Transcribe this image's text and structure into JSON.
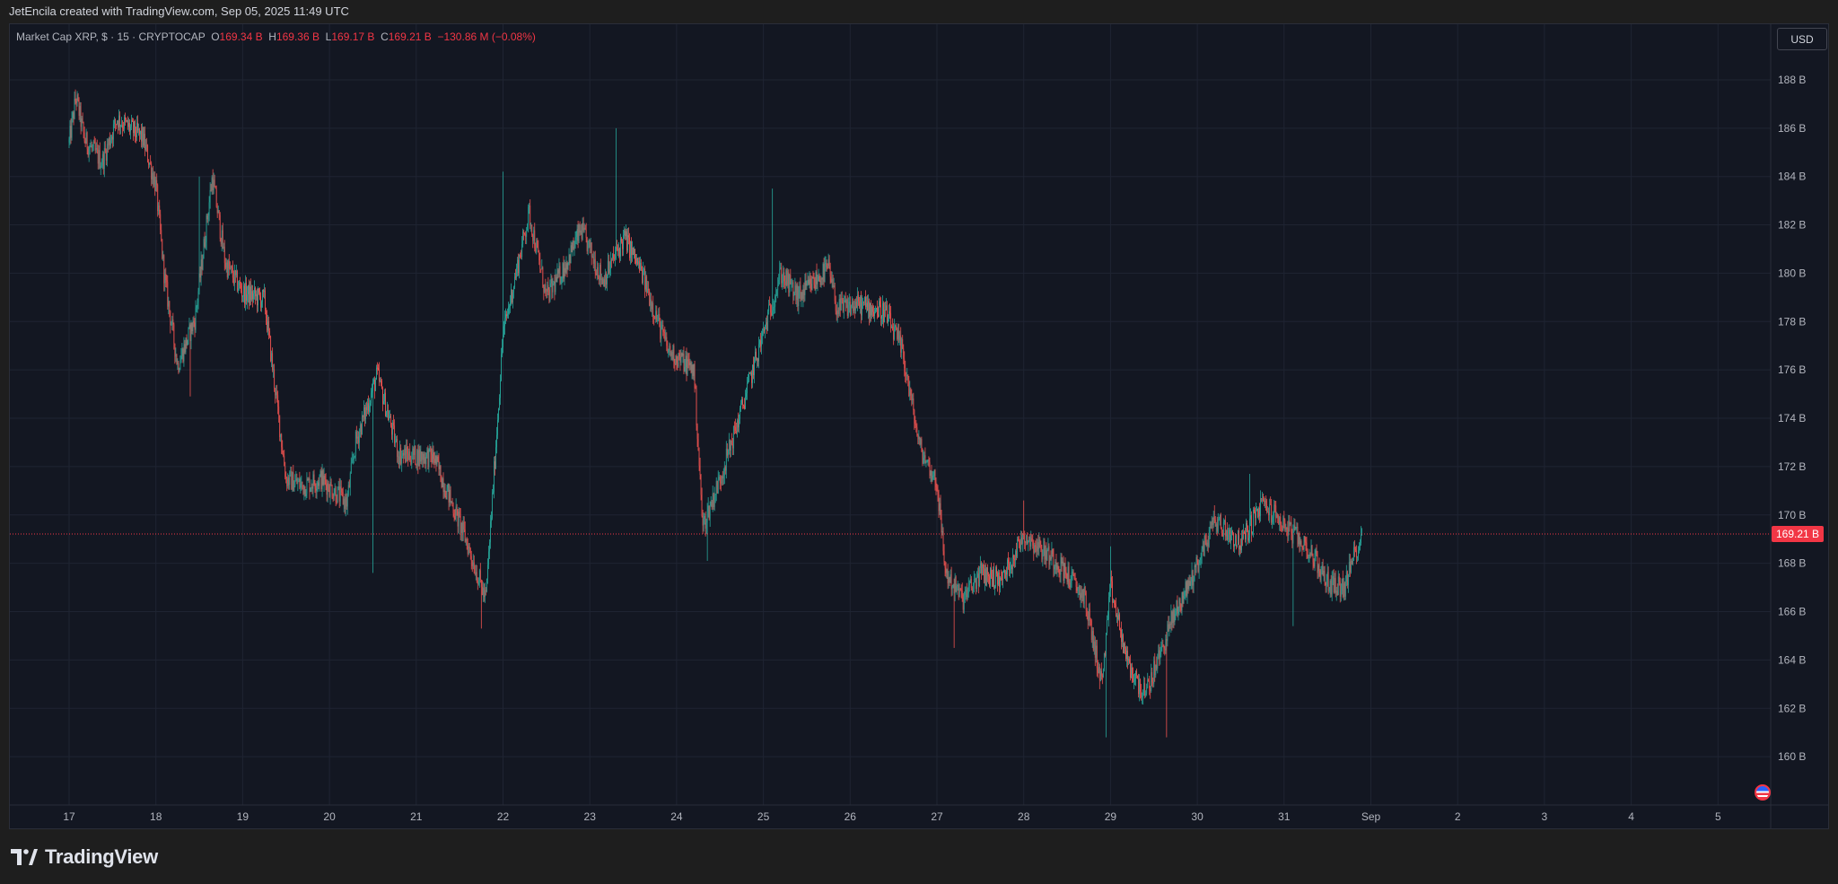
{
  "header": {
    "credit": "JetEncila created with TradingView.com, Sep 05, 2025 11:49 UTC"
  },
  "legend": {
    "title": "Market Cap XRP, $ · 15 · CRYPTOCAP",
    "o_label": "O",
    "o_value": "169.34 B",
    "h_label": "H",
    "h_value": "169.36 B",
    "l_label": "L",
    "l_value": "169.17 B",
    "c_label": "C",
    "c_value": "169.21 B",
    "change": "−130.86 M (−0.08%)"
  },
  "toolbar": {
    "currency_label": "USD"
  },
  "footer": {
    "brand": "TradingView"
  },
  "colors": {
    "background": "#131722",
    "grid": "#1f2432",
    "up": "#26a69a",
    "down": "#ef5350",
    "price_line": "#f23645",
    "axis_text": "#b2b5be"
  },
  "icons": {
    "logo": "tradingview-logo-icon",
    "flag": "us-flag-icon"
  },
  "chart_data": {
    "type": "candlestick",
    "title": "Market Cap XRP, $ · 15 · CRYPTOCAP",
    "y_unit": "B",
    "ylim": [
      158.0,
      190.3
    ],
    "y_ticks": [
      160,
      162,
      164,
      166,
      168,
      170,
      172,
      174,
      176,
      178,
      180,
      182,
      184,
      186,
      188
    ],
    "y_tick_labels": [
      "160 B",
      "162 B",
      "164 B",
      "166 B",
      "168 B",
      "170 B",
      "172 B",
      "174 B",
      "176 B",
      "178 B",
      "180 B",
      "182 B",
      "184 B",
      "186 B",
      "188 B"
    ],
    "x_ticks": [
      "17",
      "18",
      "19",
      "20",
      "21",
      "22",
      "23",
      "24",
      "25",
      "26",
      "27",
      "28",
      "29",
      "30",
      "31",
      "Sep",
      "2",
      "3",
      "4",
      "5"
    ],
    "last_price": 169.21,
    "last_price_label": "169.21 B",
    "grid": true,
    "series_path": [
      [
        0,
        185.4
      ],
      [
        0.08,
        187.3
      ],
      [
        0.18,
        185.5
      ],
      [
        0.38,
        184.6
      ],
      [
        0.55,
        186.4
      ],
      [
        0.85,
        185.6
      ],
      [
        1.0,
        183.6
      ],
      [
        1.1,
        179.8
      ],
      [
        1.25,
        176.2
      ],
      [
        1.45,
        178.1
      ],
      [
        1.65,
        184.0
      ],
      [
        1.8,
        180.4
      ],
      [
        2.0,
        179.2
      ],
      [
        2.25,
        178.9
      ],
      [
        2.5,
        171.5
      ],
      [
        2.7,
        171.2
      ],
      [
        2.9,
        171.5
      ],
      [
        3.2,
        170.5
      ],
      [
        3.3,
        173.0
      ],
      [
        3.55,
        175.8
      ],
      [
        3.8,
        172.5
      ],
      [
        4.2,
        172.4
      ],
      [
        4.55,
        169.2
      ],
      [
        4.8,
        166.5
      ],
      [
        5.0,
        177.5
      ],
      [
        5.3,
        182.5
      ],
      [
        5.5,
        179.0
      ],
      [
        5.7,
        180.2
      ],
      [
        5.9,
        181.8
      ],
      [
        6.15,
        179.7
      ],
      [
        6.4,
        181.5
      ],
      [
        6.6,
        180.0
      ],
      [
        6.9,
        176.8
      ],
      [
        7.2,
        176.0
      ],
      [
        7.3,
        169.5
      ],
      [
        7.5,
        171.5
      ],
      [
        7.7,
        173.8
      ],
      [
        8.0,
        177.5
      ],
      [
        8.2,
        180.0
      ],
      [
        8.4,
        179.0
      ],
      [
        8.75,
        180.2
      ],
      [
        8.85,
        178.5
      ],
      [
        9.1,
        178.7
      ],
      [
        9.4,
        178.4
      ],
      [
        9.6,
        176.8
      ],
      [
        9.8,
        172.8
      ],
      [
        10.0,
        171.3
      ],
      [
        10.1,
        167.6
      ],
      [
        10.3,
        166.5
      ],
      [
        10.5,
        167.6
      ],
      [
        10.75,
        167.3
      ],
      [
        11.0,
        169.2
      ],
      [
        11.4,
        168.0
      ],
      [
        11.7,
        166.6
      ],
      [
        11.9,
        163.0
      ],
      [
        12.0,
        167.0
      ],
      [
        12.2,
        163.8
      ],
      [
        12.4,
        162.5
      ],
      [
        12.7,
        165.6
      ],
      [
        12.95,
        167.5
      ],
      [
        13.2,
        169.8
      ],
      [
        13.5,
        168.8
      ],
      [
        13.75,
        170.5
      ],
      [
        14.0,
        169.6
      ],
      [
        14.3,
        168.5
      ],
      [
        14.5,
        167.2
      ],
      [
        14.7,
        167.0
      ],
      [
        14.8,
        168.3
      ],
      [
        14.9,
        169.21
      ]
    ],
    "highs": [
      [
        0.07,
        187.6
      ],
      [
        1.5,
        184.0
      ],
      [
        5.0,
        184.2
      ],
      [
        6.3,
        186.0
      ],
      [
        8.1,
        183.5
      ],
      [
        9.6,
        173.8
      ],
      [
        11.0,
        170.6
      ],
      [
        12.0,
        168.7
      ],
      [
        13.2,
        170.4
      ],
      [
        13.6,
        171.7
      ]
    ],
    "lows": [
      [
        1.4,
        174.9
      ],
      [
        3.5,
        167.6
      ],
      [
        4.75,
        165.3
      ],
      [
        7.35,
        168.1
      ],
      [
        10.2,
        164.5
      ],
      [
        11.95,
        160.8
      ],
      [
        12.65,
        160.8
      ],
      [
        14.1,
        165.4
      ]
    ]
  }
}
